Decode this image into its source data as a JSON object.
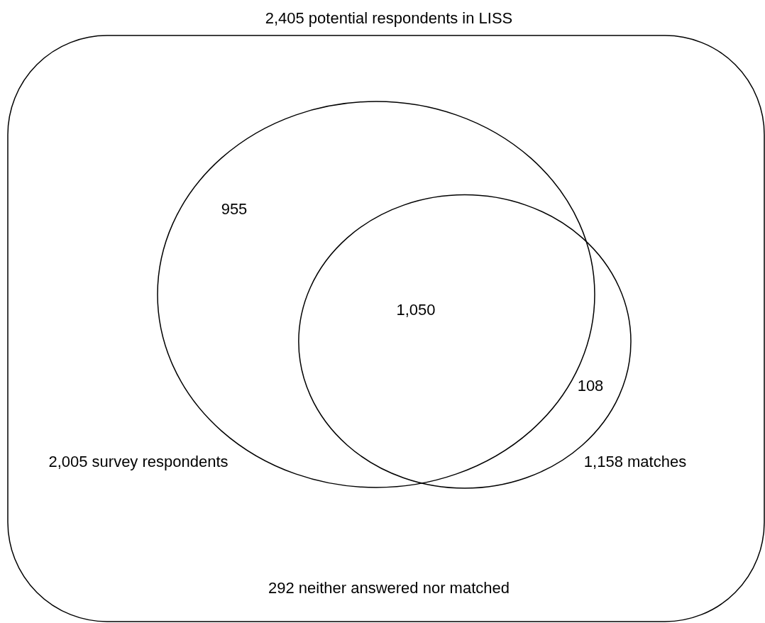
{
  "chart_data": {
    "type": "other",
    "title": "2,405 potential respondents in LISS",
    "categories": [
      null,
      null,
      null
    ],
    "values": [
      955,
      1050,
      108
    ],
    "value_labels": [
      "955",
      "1,050",
      "108"
    ],
    "annotations": [
      "2,005 survey respondents",
      "1,158 matches",
      "292 neither answered nor matched"
    ]
  }
}
